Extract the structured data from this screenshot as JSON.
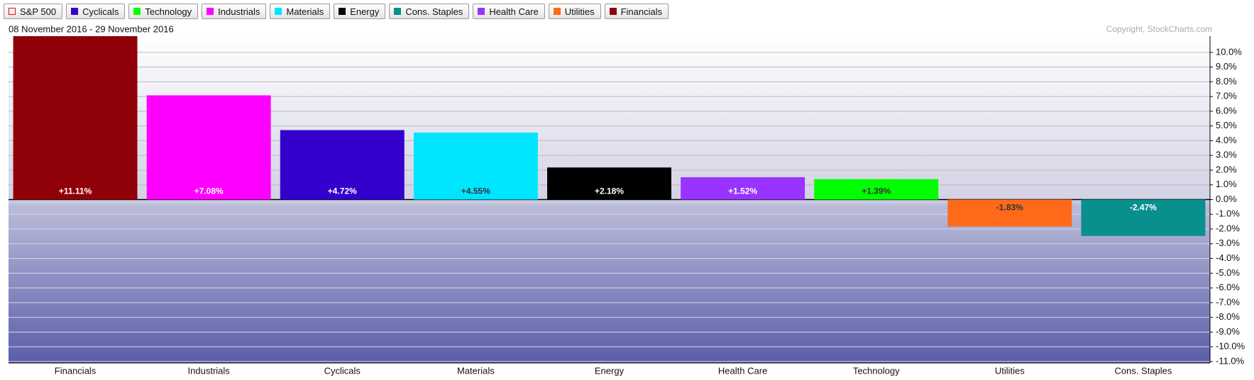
{
  "chart_data": {
    "type": "bar",
    "subtitle": "08 November 2016 - 29 November 2016",
    "copyright": "Copyright, StockCharts.com",
    "legend": [
      {
        "name": "S&P 500",
        "color": "#e01010",
        "hollow": true
      },
      {
        "name": "Cyclicals",
        "color": "#3300cc"
      },
      {
        "name": "Technology",
        "color": "#00ff00"
      },
      {
        "name": "Industrials",
        "color": "#ff00ff"
      },
      {
        "name": "Materials",
        "color": "#00e5ff"
      },
      {
        "name": "Energy",
        "color": "#000000"
      },
      {
        "name": "Cons. Staples",
        "color": "#0a8f8f"
      },
      {
        "name": "Health Care",
        "color": "#9933ff"
      },
      {
        "name": "Utilities",
        "color": "#ff6a1a"
      },
      {
        "name": "Financials",
        "color": "#900008"
      }
    ],
    "categories": [
      "Financials",
      "Industrials",
      "Cyclicals",
      "Materials",
      "Energy",
      "Health Care",
      "Technology",
      "Utilities",
      "Cons. Staples"
    ],
    "values": [
      11.11,
      7.08,
      4.72,
      4.55,
      2.18,
      1.52,
      1.39,
      -1.83,
      -2.47
    ],
    "value_labels": [
      "+11.11%",
      "+7.08%",
      "+4.72%",
      "+4.55%",
      "+2.18%",
      "+1.52%",
      "+1.39%",
      "-1.83%",
      "-2.47%"
    ],
    "colors": [
      "#900008",
      "#ff00ff",
      "#3300cc",
      "#00e5ff",
      "#000000",
      "#9933ff",
      "#00ff00",
      "#ff6a1a",
      "#0a8f8f"
    ],
    "ylim": [
      -11.1,
      11.1
    ],
    "yticks": [
      {
        "value": 10,
        "label": "10.0%"
      },
      {
        "value": 9,
        "label": "9.0%"
      },
      {
        "value": 8,
        "label": "8.0%"
      },
      {
        "value": 7,
        "label": "7.0%"
      },
      {
        "value": 6,
        "label": "6.0%"
      },
      {
        "value": 5,
        "label": "5.0%"
      },
      {
        "value": 4,
        "label": "4.0%"
      },
      {
        "value": 3,
        "label": "3.0%"
      },
      {
        "value": 2,
        "label": "2.0%"
      },
      {
        "value": 1,
        "label": "1.0%"
      },
      {
        "value": 0,
        "label": "0.0%"
      },
      {
        "value": -1,
        "label": "-1.0%"
      },
      {
        "value": -2,
        "label": "-2.0%"
      },
      {
        "value": -3,
        "label": "-3.0%"
      },
      {
        "value": -4,
        "label": "-4.0%"
      },
      {
        "value": -5,
        "label": "-5.0%"
      },
      {
        "value": -6,
        "label": "-6.0%"
      },
      {
        "value": -7,
        "label": "-7.0%"
      },
      {
        "value": -8,
        "label": "-8.0%"
      },
      {
        "value": -9,
        "label": "-9.0%"
      },
      {
        "value": -10,
        "label": "-10.0%"
      },
      {
        "value": -11,
        "label": "-11.0%"
      }
    ],
    "grid": true
  }
}
